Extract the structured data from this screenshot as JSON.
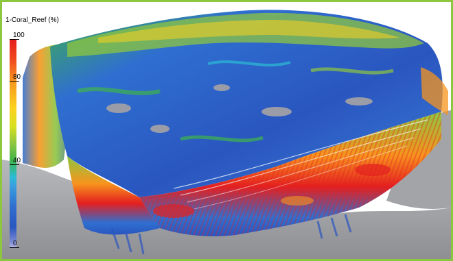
{
  "colorbar": {
    "title": "1-Coral_Reef (%)",
    "labels": {
      "v100": "100",
      "v80": "80",
      "v40": "40",
      "v0": "0"
    }
  },
  "colors": {
    "frame_border": "#8dc63f",
    "terrain_gray": "#9a9b9f",
    "high": "#e41f1f",
    "mid": "#8dc63f",
    "low": "#2a56c0"
  }
}
